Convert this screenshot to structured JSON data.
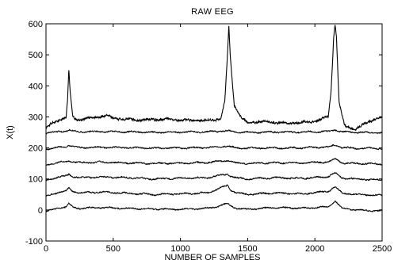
{
  "chart_data": {
    "type": "line",
    "title": "RAW EEG",
    "xlabel": "NUMBER OF SAMPLES",
    "ylabel": "X(t)",
    "xlim": [
      0,
      2500
    ],
    "ylim": [
      -100,
      600
    ],
    "xticks": [
      0,
      500,
      1000,
      1500,
      2000,
      2500
    ],
    "yticks": [
      -100,
      0,
      100,
      200,
      300,
      400,
      500,
      600
    ],
    "grid": false,
    "line_color": "#000000",
    "series": [
      {
        "baseline": 0,
        "x": [
          0,
          80,
          150,
          170,
          200,
          250,
          400,
          600,
          800,
          1000,
          1200,
          1350,
          1370,
          1420,
          1500,
          1700,
          1900,
          2100,
          2150,
          2200,
          2300,
          2500
        ],
        "values": [
          -5,
          5,
          10,
          20,
          10,
          5,
          8,
          5,
          3,
          2,
          5,
          20,
          15,
          5,
          2,
          8,
          6,
          10,
          30,
          5,
          0,
          -3
        ]
      },
      {
        "baseline": 50,
        "x": [
          0,
          80,
          150,
          170,
          200,
          250,
          400,
          600,
          800,
          1000,
          1200,
          1350,
          1370,
          1420,
          1500,
          1700,
          1900,
          2100,
          2150,
          2200,
          2300,
          2500
        ],
        "values": [
          45,
          55,
          62,
          70,
          60,
          55,
          58,
          54,
          50,
          52,
          55,
          80,
          65,
          55,
          50,
          55,
          52,
          60,
          75,
          55,
          50,
          47
        ]
      },
      {
        "baseline": 100,
        "x": [
          0,
          80,
          150,
          170,
          200,
          250,
          400,
          600,
          800,
          1000,
          1200,
          1350,
          1370,
          1420,
          1500,
          1700,
          1900,
          2100,
          2150,
          2200,
          2300,
          2500
        ],
        "values": [
          95,
          105,
          110,
          115,
          108,
          104,
          106,
          104,
          100,
          102,
          104,
          115,
          110,
          103,
          100,
          104,
          102,
          108,
          120,
          104,
          100,
          97
        ]
      },
      {
        "baseline": 150,
        "x": [
          0,
          80,
          150,
          170,
          200,
          250,
          400,
          600,
          800,
          1000,
          1200,
          1350,
          1370,
          1420,
          1500,
          1700,
          1900,
          2100,
          2150,
          2200,
          2300,
          2500
        ],
        "values": [
          145,
          152,
          155,
          160,
          155,
          152,
          154,
          152,
          150,
          151,
          153,
          160,
          156,
          151,
          150,
          152,
          151,
          155,
          165,
          152,
          150,
          148
        ]
      },
      {
        "baseline": 200,
        "x": [
          0,
          80,
          150,
          170,
          200,
          250,
          400,
          600,
          800,
          1000,
          1200,
          1350,
          1370,
          1420,
          1500,
          1700,
          1900,
          2100,
          2150,
          2200,
          2300,
          2500
        ],
        "values": [
          197,
          200,
          205,
          210,
          204,
          201,
          202,
          201,
          199,
          200,
          201,
          206,
          204,
          200,
          199,
          200,
          200,
          203,
          210,
          201,
          199,
          198
        ]
      },
      {
        "baseline": 250,
        "x": [
          0,
          80,
          150,
          170,
          200,
          250,
          400,
          600,
          800,
          1000,
          1200,
          1350,
          1370,
          1420,
          1500,
          1700,
          1900,
          2100,
          2150,
          2200,
          2300,
          2500
        ],
        "values": [
          248,
          252,
          255,
          258,
          254,
          252,
          253,
          252,
          250,
          251,
          252,
          255,
          253,
          251,
          250,
          251,
          251,
          253,
          258,
          252,
          250,
          249
        ]
      },
      {
        "baseline": 300,
        "x": [
          0,
          50,
          100,
          150,
          160,
          170,
          180,
          200,
          230,
          300,
          400,
          450,
          500,
          700,
          900,
          1100,
          1250,
          1300,
          1330,
          1350,
          1360,
          1370,
          1400,
          1450,
          1500,
          1600,
          1800,
          2000,
          2100,
          2120,
          2140,
          2150,
          2160,
          2180,
          2220,
          2300,
          2400,
          2500
        ],
        "values": [
          265,
          280,
          290,
          300,
          350,
          450,
          380,
          300,
          290,
          295,
          300,
          305,
          295,
          290,
          292,
          288,
          290,
          295,
          350,
          500,
          595,
          500,
          340,
          300,
          280,
          285,
          280,
          285,
          300,
          380,
          560,
          600,
          560,
          350,
          270,
          260,
          285,
          300
        ]
      }
    ]
  }
}
